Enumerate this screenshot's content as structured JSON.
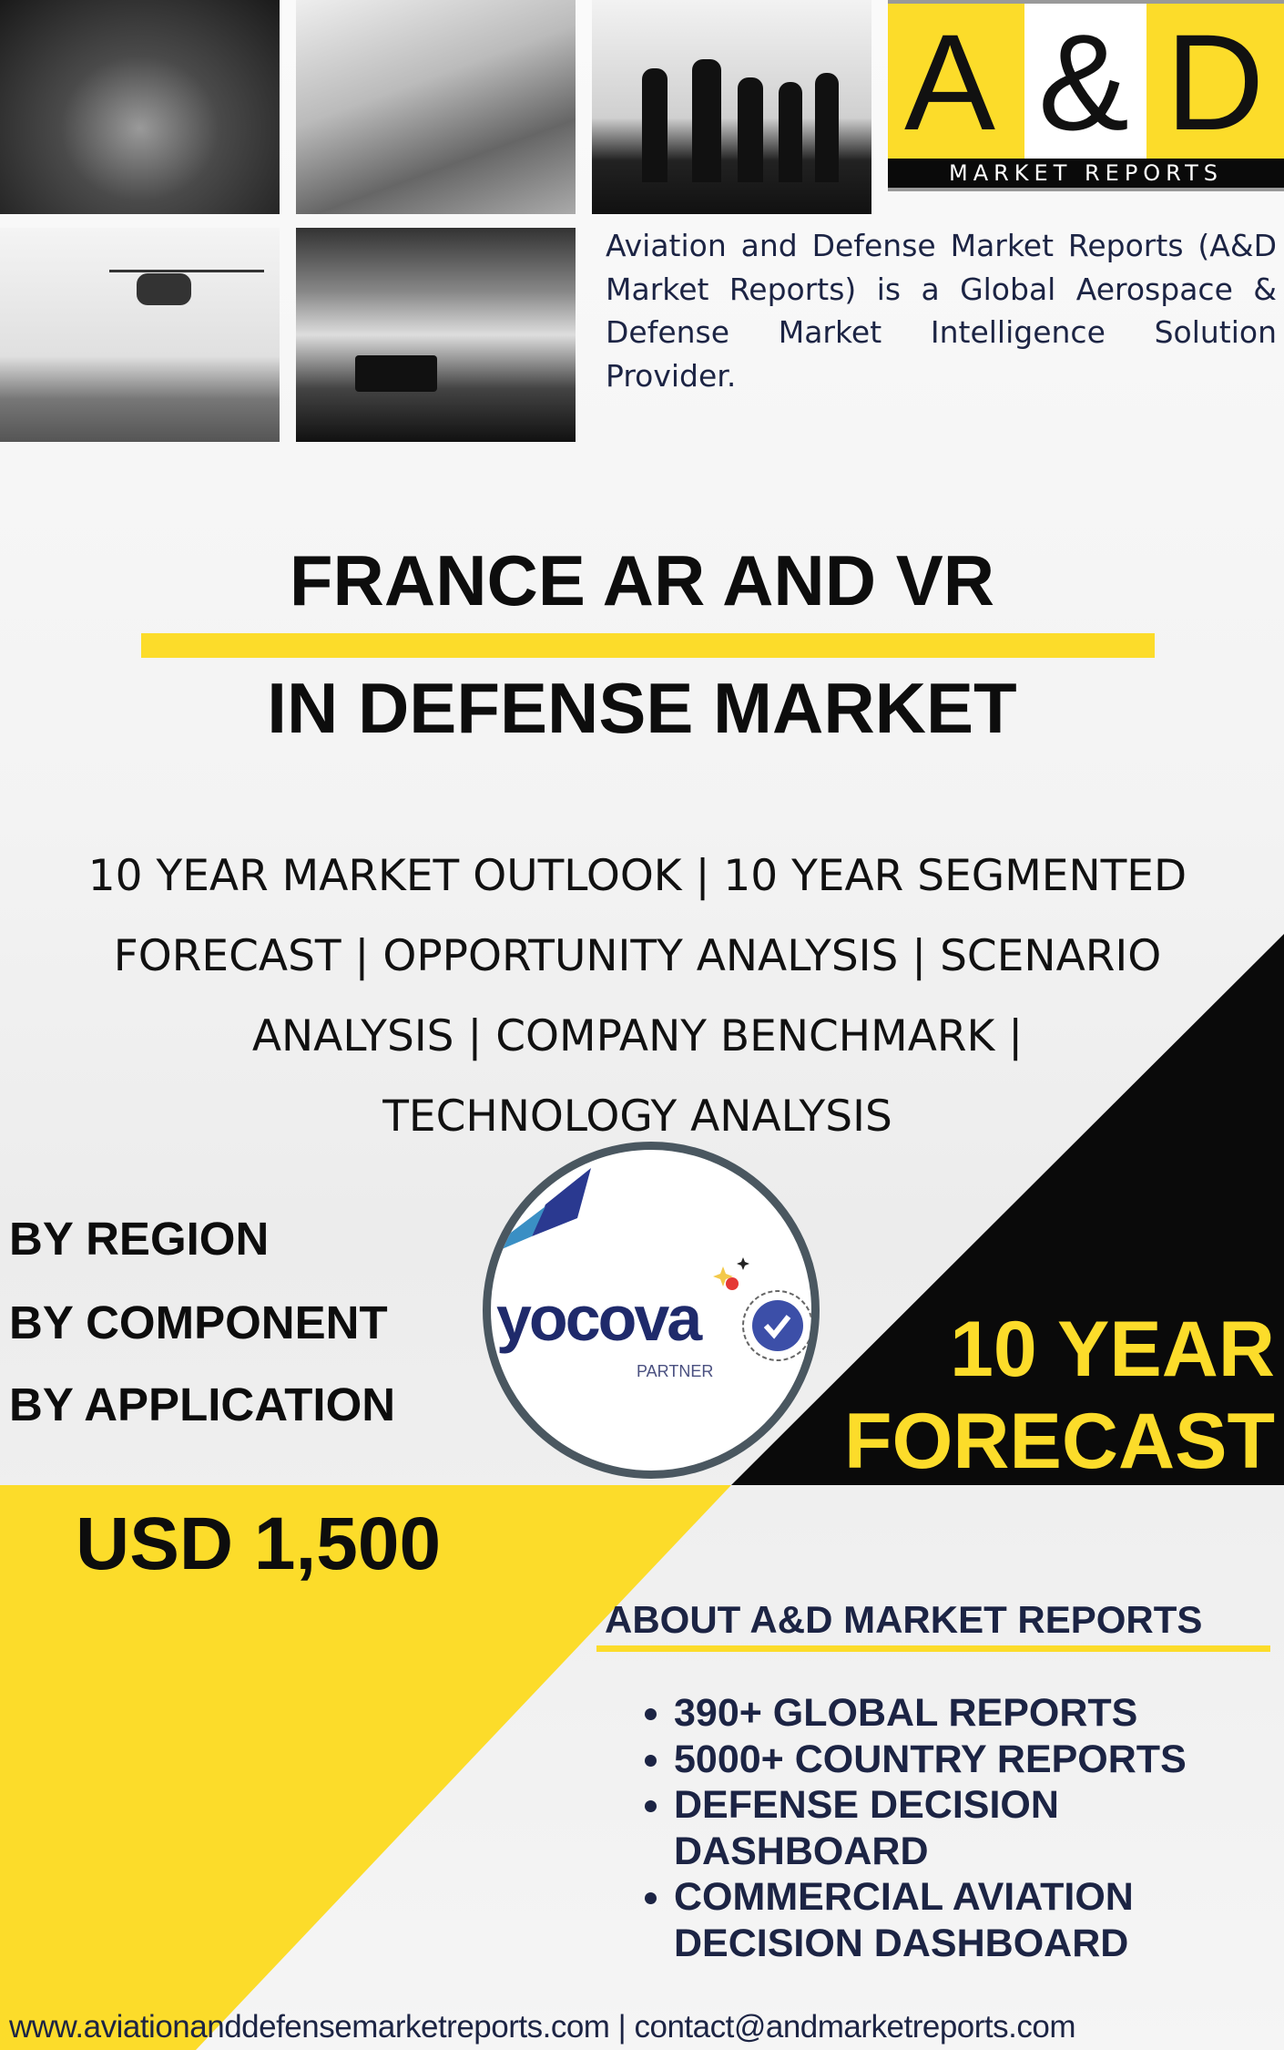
{
  "logo": {
    "letters": [
      "A",
      "&",
      "D"
    ],
    "tagline": "MARKET REPORTS",
    "colors": {
      "yellow": "#fcdc2a",
      "black": "#0a0a0a"
    }
  },
  "description": "Aviation and Defense Market Reports (A&D Market Reports) is a Global Aerospace & Defense Market Intelligence Solution Provider.",
  "photos": [
    "fighter-jet",
    "aircraft-carrier",
    "soldiers-silhouette",
    "helicopter",
    "armored-vehicle"
  ],
  "title": {
    "line1": "FRANCE AR AND VR",
    "line2": "IN DEFENSE MARKET"
  },
  "subtitle_lines": [
    "10 YEAR MARKET OUTLOOK | 10 YEAR SEGMENTED",
    "FORECAST | OPPORTUNITY ANALYSIS | SCENARIO",
    "ANALYSIS | COMPANY BENCHMARK |",
    "TECHNOLOGY ANALYSIS"
  ],
  "segments": [
    "BY REGION",
    "BY COMPONENT",
    "BY APPLICATION"
  ],
  "partner": {
    "name": "yocova",
    "label": "PARTNER",
    "color": "#1f2a6b"
  },
  "forecast": {
    "line1": "10 YEAR",
    "line2": "FORECAST"
  },
  "price": "USD 1,500",
  "about": {
    "heading": "ABOUT A&D MARKET REPORTS",
    "items": [
      "390+ GLOBAL REPORTS",
      "5000+ COUNTRY REPORTS",
      "DEFENSE DECISION DASHBOARD",
      "COMMERCIAL AVIATION DECISION DASHBOARD"
    ]
  },
  "footer": "www.aviationanddefensemarketreports.com | contact@andmarketreports.com"
}
